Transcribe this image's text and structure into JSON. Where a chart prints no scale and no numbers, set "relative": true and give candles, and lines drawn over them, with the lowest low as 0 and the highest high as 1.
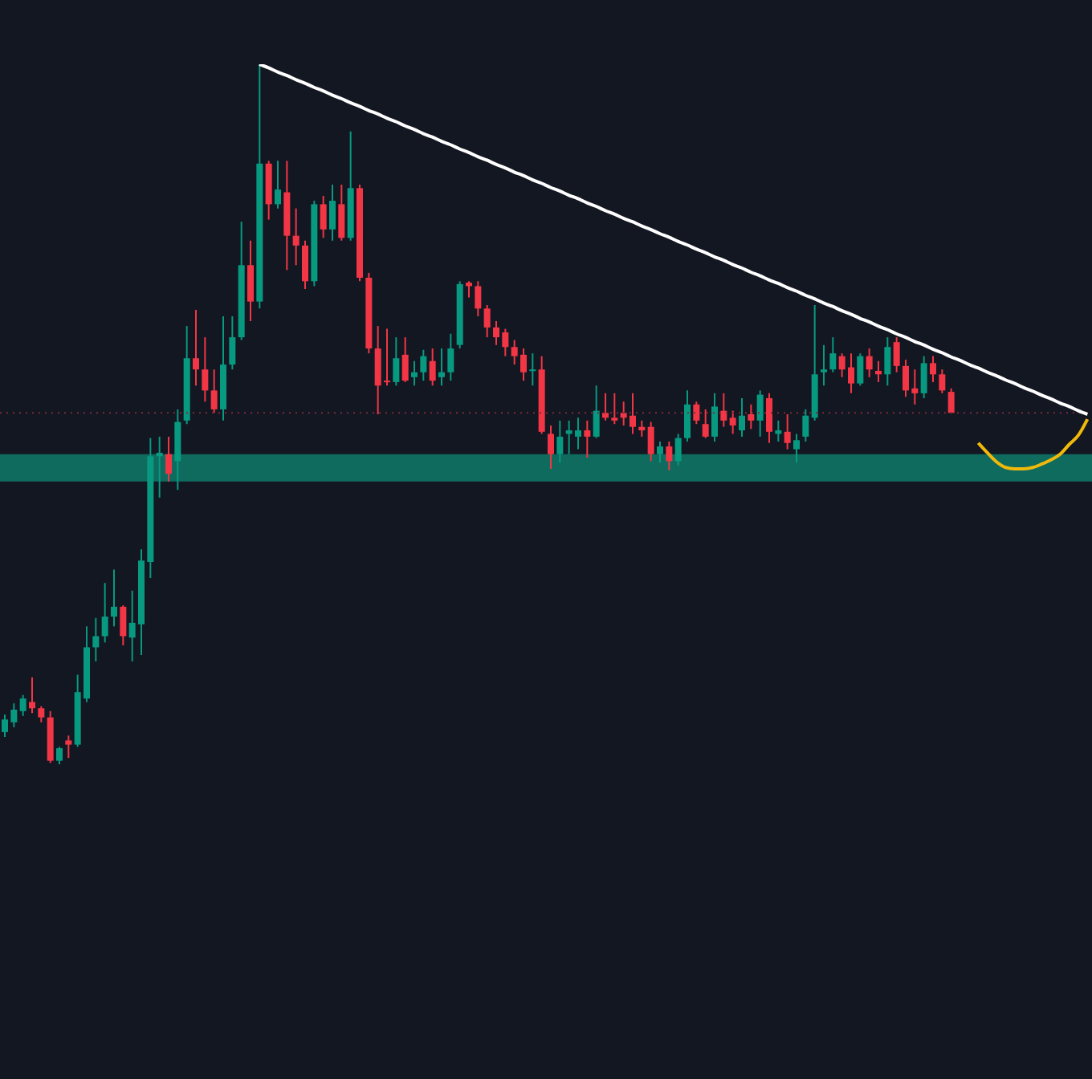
{
  "chart_data": {
    "type": "candlestick",
    "relative": true,
    "colors": [
      "#089981",
      "#089981",
      "#089981",
      "#f23645",
      "#f23645",
      "#f23645",
      "#089981",
      "#f23645",
      "#089981",
      "#089981",
      "#089981",
      "#089981",
      "#089981",
      "#f23645",
      "#089981",
      "#089981",
      "#089981",
      "#089981",
      "#f23645",
      "#089981",
      "#089981",
      "#f23645",
      "#f23645",
      "#f23645",
      "#089981",
      "#089981",
      "#089981",
      "#f23645",
      "#089981",
      "#f23645",
      "#089981",
      "#f23645",
      "#f23645",
      "#f23645",
      "#089981",
      "#f23645",
      "#089981",
      "#f23645",
      "#089981",
      "#f23645",
      "#f23645",
      "#f23645",
      "#f23645",
      "#089981",
      "#f23645",
      "#089981",
      "#089981",
      "#f23645",
      "#089981",
      "#089981",
      "#089981",
      "#f23645",
      "#f23645",
      "#f23645",
      "#f23645",
      "#f23645",
      "#f23645",
      "#f23645",
      "#089981",
      "#f23645",
      "#f23645",
      "#089981",
      "#089981",
      "#089981",
      "#f23645",
      "#089981",
      "#f23645",
      "#f23645",
      "#f23645",
      "#f23645",
      "#f23645",
      "#f23645",
      "#089981",
      "#f23645",
      "#089981",
      "#089981",
      "#f23645",
      "#f23645",
      "#089981",
      "#f23645",
      "#f23645",
      "#089981",
      "#f23645",
      "#089981",
      "#f23645",
      "#089981",
      "#f23645",
      "#089981",
      "#089981",
      "#089981",
      "#089981",
      "#089981",
      "#f23645",
      "#f23645",
      "#089981",
      "#f23645",
      "#f23645",
      "#089981",
      "#f23645",
      "#f23645",
      "#f23645",
      "#089981",
      "#f23645",
      "#f23645",
      "#f23645",
      null,
      null,
      null,
      null,
      null,
      null,
      null,
      null,
      null,
      null,
      null,
      null,
      null,
      null,
      null
    ],
    "categories": [
      null,
      null,
      null,
      null,
      null,
      null,
      null,
      null,
      null,
      null,
      null,
      null,
      null,
      null,
      null,
      null,
      null,
      null,
      null,
      null,
      null,
      null,
      null,
      null,
      null,
      null,
      null,
      null,
      null,
      null,
      null,
      null,
      null,
      null,
      null,
      null,
      null,
      null,
      null,
      null,
      null,
      null,
      null,
      null,
      null,
      null,
      null,
      null,
      null,
      null,
      null,
      null,
      null,
      null,
      null,
      null,
      null,
      null,
      null,
      null,
      null,
      null,
      null,
      null,
      null,
      null,
      null,
      null,
      null,
      null,
      null,
      null,
      null,
      null,
      null,
      null,
      null,
      null,
      null,
      null,
      null,
      null,
      null,
      null,
      null,
      null,
      null,
      null,
      null,
      null,
      null,
      null,
      null,
      null,
      null,
      null,
      null,
      null,
      null,
      null,
      null,
      null,
      null,
      null,
      null,
      null,
      null,
      null,
      null,
      null,
      null,
      null,
      null,
      null,
      null,
      null,
      null,
      null,
      null,
      null
    ],
    "ohlc": [
      [
        0.046,
        0.071,
        0.039,
        0.064
      ],
      [
        0.06,
        0.087,
        0.053,
        0.078
      ],
      [
        0.076,
        0.099,
        0.069,
        0.094
      ],
      [
        0.089,
        0.124,
        0.073,
        0.08
      ],
      [
        0.08,
        0.083,
        0.06,
        0.067
      ],
      [
        0.067,
        0.076,
        0.002,
        0.005
      ],
      [
        0.005,
        0.025,
        0,
        0.023
      ],
      [
        0.034,
        0.041,
        0.009,
        0.028
      ],
      [
        0.028,
        0.128,
        0.025,
        0.103
      ],
      [
        0.094,
        0.197,
        0.089,
        0.167
      ],
      [
        0.167,
        0.209,
        0.147,
        0.183
      ],
      [
        0.183,
        0.259,
        0.174,
        0.211
      ],
      [
        0.211,
        0.278,
        0.197,
        0.225
      ],
      [
        0.225,
        0.227,
        0.17,
        0.183
      ],
      [
        0.181,
        0.248,
        0.147,
        0.202
      ],
      [
        0.2,
        0.307,
        0.156,
        0.291
      ],
      [
        0.289,
        0.466,
        0.266,
        0.44
      ],
      [
        0.44,
        0.468,
        0.381,
        0.445
      ],
      [
        0.443,
        0.468,
        0.404,
        0.415
      ],
      [
        0.433,
        0.507,
        0.392,
        0.489
      ],
      [
        0.491,
        0.626,
        0.486,
        0.58
      ],
      [
        0.58,
        0.649,
        0.541,
        0.564
      ],
      [
        0.564,
        0.61,
        0.518,
        0.534
      ],
      [
        0.534,
        0.564,
        0.502,
        0.507
      ],
      [
        0.507,
        0.64,
        0.491,
        0.571
      ],
      [
        0.571,
        0.64,
        0.564,
        0.61
      ],
      [
        0.61,
        0.775,
        0.606,
        0.713
      ],
      [
        0.713,
        0.748,
        0.633,
        0.661
      ],
      [
        0.661,
        1,
        0.651,
        0.858
      ],
      [
        0.858,
        0.862,
        0.778,
        0.8
      ],
      [
        0.8,
        0.862,
        0.794,
        0.821
      ],
      [
        0.817,
        0.862,
        0.706,
        0.755
      ],
      [
        0.755,
        0.794,
        0.713,
        0.741
      ],
      [
        0.741,
        0.748,
        0.679,
        0.69
      ],
      [
        0.69,
        0.805,
        0.683,
        0.8
      ],
      [
        0.8,
        0.812,
        0.752,
        0.764
      ],
      [
        0.764,
        0.828,
        0.748,
        0.805
      ],
      [
        0.8,
        0.828,
        0.748,
        0.752
      ],
      [
        0.752,
        0.904,
        0.748,
        0.823
      ],
      [
        0.823,
        0.828,
        0.69,
        0.695
      ],
      [
        0.695,
        0.702,
        0.587,
        0.594
      ],
      [
        0.594,
        0.626,
        0.5,
        0.541
      ],
      [
        0.548,
        0.622,
        0.541,
        0.546
      ],
      [
        0.546,
        0.61,
        0.541,
        0.58
      ],
      [
        0.585,
        0.61,
        0.546,
        0.548
      ],
      [
        0.553,
        0.576,
        0.541,
        0.56
      ],
      [
        0.56,
        0.592,
        0.548,
        0.583
      ],
      [
        0.576,
        0.594,
        0.541,
        0.548
      ],
      [
        0.553,
        0.594,
        0.541,
        0.56
      ],
      [
        0.56,
        0.615,
        0.548,
        0.594
      ],
      [
        0.599,
        0.69,
        0.594,
        0.686
      ],
      [
        0.688,
        0.69,
        0.667,
        0.683
      ],
      [
        0.683,
        0.69,
        0.64,
        0.651
      ],
      [
        0.651,
        0.656,
        0.61,
        0.624
      ],
      [
        0.624,
        0.633,
        0.599,
        0.61
      ],
      [
        0.617,
        0.622,
        0.583,
        0.596
      ],
      [
        0.596,
        0.606,
        0.571,
        0.583
      ],
      [
        0.585,
        0.594,
        0.548,
        0.56
      ],
      [
        0.562,
        0.587,
        0.541,
        0.564
      ],
      [
        0.564,
        0.583,
        0.472,
        0.475
      ],
      [
        0.472,
        0.484,
        0.422,
        0.443
      ],
      [
        0.443,
        0.491,
        0.431,
        0.468
      ],
      [
        0.472,
        0.491,
        0.443,
        0.477
      ],
      [
        0.468,
        0.495,
        0.45,
        0.477
      ],
      [
        0.477,
        0.491,
        0.438,
        0.468
      ],
      [
        0.468,
        0.541,
        0.466,
        0.505
      ],
      [
        0.502,
        0.53,
        0.491,
        0.495
      ],
      [
        0.495,
        0.53,
        0.486,
        0.491
      ],
      [
        0.502,
        0.518,
        0.484,
        0.495
      ],
      [
        0.498,
        0.53,
        0.472,
        0.482
      ],
      [
        0.482,
        0.491,
        0.468,
        0.477
      ],
      [
        0.482,
        0.489,
        0.433,
        0.443
      ],
      [
        0.443,
        0.461,
        0.431,
        0.454
      ],
      [
        0.454,
        0.461,
        0.42,
        0.433
      ],
      [
        0.433,
        0.472,
        0.427,
        0.466
      ],
      [
        0.466,
        0.534,
        0.461,
        0.514
      ],
      [
        0.514,
        0.518,
        0.486,
        0.491
      ],
      [
        0.486,
        0.507,
        0.466,
        0.468
      ],
      [
        0.468,
        0.53,
        0.461,
        0.511
      ],
      [
        0.505,
        0.53,
        0.482,
        0.491
      ],
      [
        0.495,
        0.505,
        0.472,
        0.484
      ],
      [
        0.477,
        0.523,
        0.468,
        0.498
      ],
      [
        0.5,
        0.514,
        0.479,
        0.491
      ],
      [
        0.491,
        0.534,
        0.468,
        0.528
      ],
      [
        0.523,
        0.53,
        0.459,
        0.475
      ],
      [
        0.472,
        0.491,
        0.461,
        0.477
      ],
      [
        0.475,
        0.5,
        0.45,
        0.459
      ],
      [
        0.45,
        0.472,
        0.431,
        0.463
      ],
      [
        0.468,
        0.507,
        0.461,
        0.498
      ],
      [
        0.495,
        0.656,
        0.491,
        0.557
      ],
      [
        0.56,
        0.599,
        0.541,
        0.564
      ],
      [
        0.564,
        0.61,
        0.56,
        0.587
      ],
      [
        0.583,
        0.587,
        0.553,
        0.564
      ],
      [
        0.567,
        0.587,
        0.53,
        0.544
      ],
      [
        0.544,
        0.587,
        0.541,
        0.583
      ],
      [
        0.583,
        0.594,
        0.553,
        0.564
      ],
      [
        0.562,
        0.576,
        0.546,
        0.557
      ],
      [
        0.557,
        0.61,
        0.541,
        0.596
      ],
      [
        0.603,
        0.61,
        0.56,
        0.569
      ],
      [
        0.569,
        0.578,
        0.525,
        0.534
      ],
      [
        0.537,
        0.564,
        0.514,
        0.53
      ],
      [
        0.53,
        0.583,
        0.523,
        0.573
      ],
      [
        0.573,
        0.583,
        0.546,
        0.557
      ],
      [
        0.557,
        0.564,
        0.53,
        0.534
      ],
      [
        0.532,
        0.537,
        0.502,
        0.502
      ],
      null,
      null,
      null,
      null,
      null,
      null,
      null,
      null,
      null,
      null,
      null,
      null,
      null,
      null,
      null
    ],
    "series": [
      {
        "type": "line",
        "color": "#ffffff",
        "values": [
          null,
          null,
          null,
          null,
          null,
          null,
          null,
          null,
          null,
          null,
          null,
          null,
          null,
          null,
          null,
          null,
          null,
          null,
          null,
          null,
          null,
          null,
          null,
          null,
          null,
          null,
          null,
          null,
          1.0,
          0.995,
          0.989,
          0.984,
          0.978,
          0.973,
          0.967,
          0.962,
          0.956,
          0.951,
          0.945,
          0.94,
          0.934,
          0.929,
          0.923,
          0.918,
          0.912,
          0.907,
          0.901,
          0.896,
          0.89,
          0.885,
          0.879,
          0.874,
          0.868,
          0.863,
          0.857,
          0.852,
          0.846,
          0.841,
          0.835,
          0.83,
          0.824,
          0.819,
          0.813,
          0.808,
          0.802,
          0.797,
          0.791,
          0.786,
          0.78,
          0.775,
          0.769,
          0.764,
          0.758,
          0.753,
          0.747,
          0.742,
          0.736,
          0.731,
          0.725,
          0.72,
          0.714,
          0.709,
          0.703,
          0.698,
          0.692,
          0.687,
          0.681,
          0.676,
          0.67,
          0.665,
          0.659,
          0.654,
          0.648,
          0.643,
          0.637,
          0.632,
          0.626,
          0.621,
          0.615,
          0.61,
          0.604,
          0.599,
          0.593,
          0.588,
          0.582,
          0.577,
          0.571,
          0.566,
          0.56,
          0.555,
          0.549,
          0.544,
          0.538,
          0.533,
          0.527,
          0.522,
          0.516,
          0.511,
          0.505,
          0.5
        ]
      },
      {
        "type": "line",
        "color": "#f0b90b",
        "values": [
          null,
          null,
          null,
          null,
          null,
          null,
          null,
          null,
          null,
          null,
          null,
          null,
          null,
          null,
          null,
          null,
          null,
          null,
          null,
          null,
          null,
          null,
          null,
          null,
          null,
          null,
          null,
          null,
          null,
          null,
          null,
          null,
          null,
          null,
          null,
          null,
          null,
          null,
          null,
          null,
          null,
          null,
          null,
          null,
          null,
          null,
          null,
          null,
          null,
          null,
          null,
          null,
          null,
          null,
          null,
          null,
          null,
          null,
          null,
          null,
          null,
          null,
          null,
          null,
          null,
          null,
          null,
          null,
          null,
          null,
          null,
          null,
          null,
          null,
          null,
          null,
          null,
          null,
          null,
          null,
          null,
          null,
          null,
          null,
          null,
          null,
          null,
          null,
          null,
          null,
          null,
          null,
          null,
          null,
          null,
          null,
          null,
          null,
          null,
          null,
          null,
          null,
          null,
          null,
          null,
          null,
          null,
          0.459,
          0.445,
          0.432,
          0.424,
          0.422,
          0.422,
          0.424,
          0.429,
          0.435,
          0.443,
          0.457,
          0.47,
          0.493
        ]
      }
    ],
    "bands": [
      {
        "axis": "y",
        "from": 0.404,
        "to": 0.443,
        "color": "#0f6b5e"
      }
    ],
    "ref_lines": [
      {
        "axis": "y",
        "value": 0.502,
        "color": "#7d2a36",
        "line_style": "dotted"
      }
    ]
  }
}
